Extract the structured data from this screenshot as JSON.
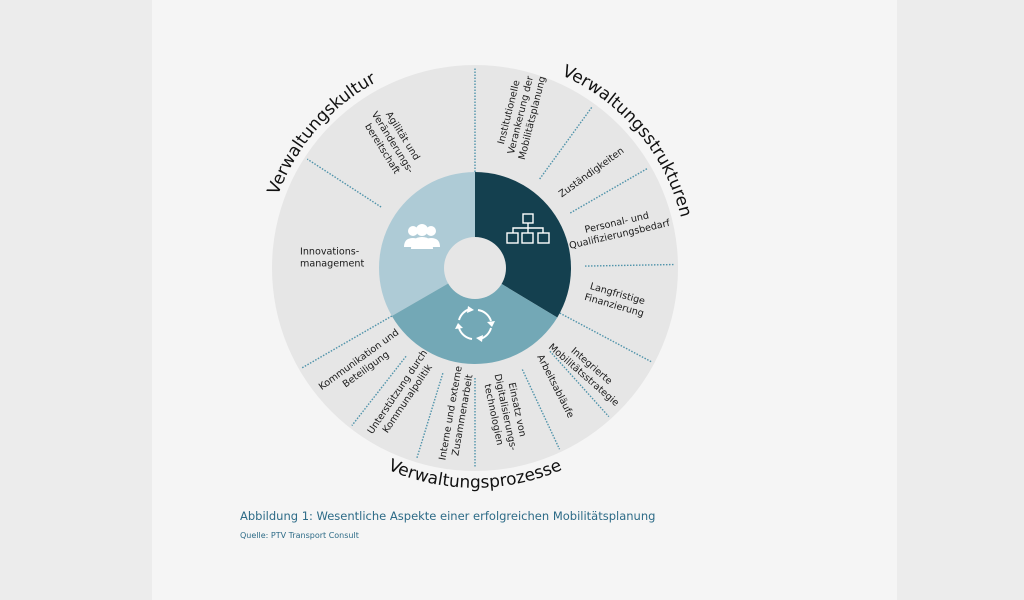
{
  "colors": {
    "ring": "#e6e6e6",
    "strukturen": "#14404f",
    "prozesse": "#73a8b6",
    "kultur": "#aecbd6",
    "divider": "#4f93aa",
    "caption": "#2d6b87"
  },
  "titles": {
    "kultur": "Verwaltungskultur",
    "strukturen": "Verwaltungsstrukturen",
    "prozesse": "Verwaltungsprozesse"
  },
  "icons": {
    "kultur": "people-group-icon",
    "strukturen": "org-chart-icon",
    "prozesse": "cycle-arrows-icon"
  },
  "labels": [
    {
      "id": "agilitaet",
      "lines": [
        "Agilität und",
        "Veränderungs-",
        "bereitschaft"
      ]
    },
    {
      "id": "institutionelle",
      "lines": [
        "Institutionelle",
        "Verankerung der",
        "Mobilitätsplanung"
      ]
    },
    {
      "id": "zustaendigkeiten",
      "lines": [
        "Zuständigkeiten"
      ]
    },
    {
      "id": "personal",
      "lines": [
        "Personal- und",
        "Qualifizierungsbedarf"
      ]
    },
    {
      "id": "innovation",
      "lines": [
        "Innovations-",
        "management"
      ]
    },
    {
      "id": "finanzierung",
      "lines": [
        "Langfristige",
        "Finanzierung"
      ]
    },
    {
      "id": "strategie",
      "lines": [
        "Integrierte",
        "Mobilitätsstrategie"
      ]
    },
    {
      "id": "arbeitsablaeufe",
      "lines": [
        "Arbeitsabläufe"
      ]
    },
    {
      "id": "digitalisierung",
      "lines": [
        "Einsatz von",
        "Digitalisierungs-",
        "technologien"
      ]
    },
    {
      "id": "zusammenarbeit",
      "lines": [
        "Interne und externe",
        "Zusammenarbeit"
      ]
    },
    {
      "id": "kommunalpolitik",
      "lines": [
        "Unterstützung durch",
        "Kommunalpolitik"
      ]
    },
    {
      "id": "kommunikation",
      "lines": [
        "Kommunikation und",
        "Beteiligung"
      ]
    }
  ],
  "caption": "Abbildung 1: Wesentliche Aspekte einer erfolgreichen Mobilitätsplanung",
  "source": "Quelle: PTV Transport Consult"
}
